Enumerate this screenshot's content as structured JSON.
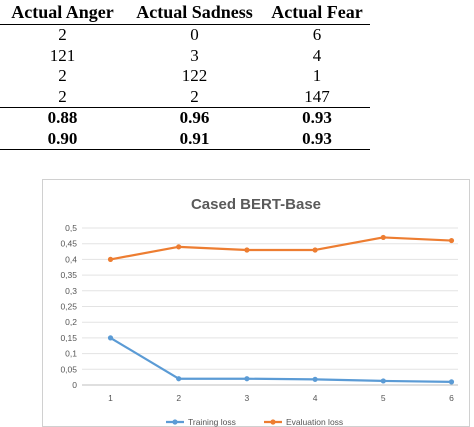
{
  "table": {
    "headers": [
      "Actual Anger",
      "Actual Sadness",
      "Actual Fear"
    ],
    "rows": [
      [
        "2",
        "0",
        "6"
      ],
      [
        "121",
        "3",
        "4"
      ],
      [
        "2",
        "122",
        "1"
      ],
      [
        "2",
        "2",
        "147"
      ]
    ],
    "bold_rows": [
      [
        "0.88",
        "0.96",
        "0.93"
      ],
      [
        "0.90",
        "0.91",
        "0.93"
      ]
    ]
  },
  "chart_data": {
    "type": "line",
    "title": "Cased BERT-Base",
    "x": [
      1,
      2,
      3,
      4,
      5,
      6
    ],
    "x_tick_labels": [
      "1",
      "2",
      "3",
      "4",
      "5",
      "6"
    ],
    "ylim": [
      0,
      0.5
    ],
    "y_ticks": [
      0,
      0.05,
      0.1,
      0.15,
      0.2,
      0.25,
      0.3,
      0.35,
      0.4,
      0.45,
      0.5
    ],
    "y_tick_labels": [
      "0",
      "0,05",
      "0,1",
      "0,15",
      "0,2",
      "0,25",
      "0,3",
      "0,35",
      "0,4",
      "0,45",
      "0,5"
    ],
    "grid": true,
    "legend_position": "bottom",
    "series": [
      {
        "name": "Training loss",
        "color": "#5b9bd5",
        "values": [
          0.15,
          0.02,
          0.02,
          0.018,
          0.013,
          0.01
        ]
      },
      {
        "name": "Evaluation loss",
        "color": "#ed7d31",
        "values": [
          0.4,
          0.44,
          0.43,
          0.43,
          0.47,
          0.46
        ]
      }
    ]
  }
}
